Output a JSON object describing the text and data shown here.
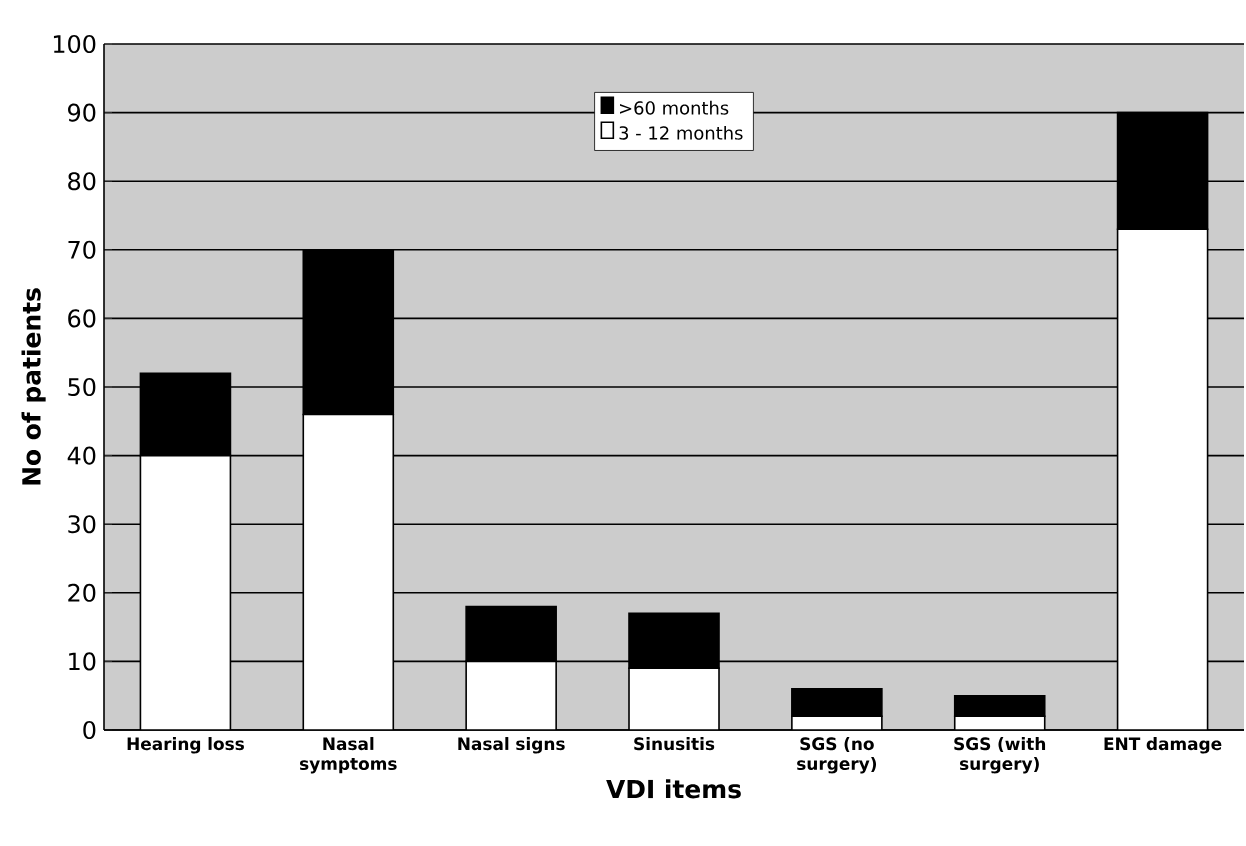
{
  "chart_data": {
    "type": "bar",
    "stacked": true,
    "xlabel": "VDI items",
    "ylabel": "No of patients",
    "categories": [
      "Hearing loss",
      "Nasal symptoms",
      "Nasal signs",
      "Sinusitis",
      "SGS (no surgery)",
      "SGS (with surgery)",
      "ENT damage"
    ],
    "series": [
      {
        "name": "3 - 12 months",
        "color": "#ffffff",
        "values": [
          40,
          46,
          10,
          9,
          2,
          2,
          73
        ]
      },
      {
        "name": ">60 months",
        "color": "#000000",
        "values": [
          12,
          24,
          8,
          8,
          4,
          3,
          17
        ]
      }
    ],
    "ylim": [
      0,
      100
    ],
    "yticks": [
      0,
      10,
      20,
      30,
      40,
      50,
      60,
      70,
      80,
      90,
      100
    ],
    "grid": "y",
    "legend": "top"
  }
}
